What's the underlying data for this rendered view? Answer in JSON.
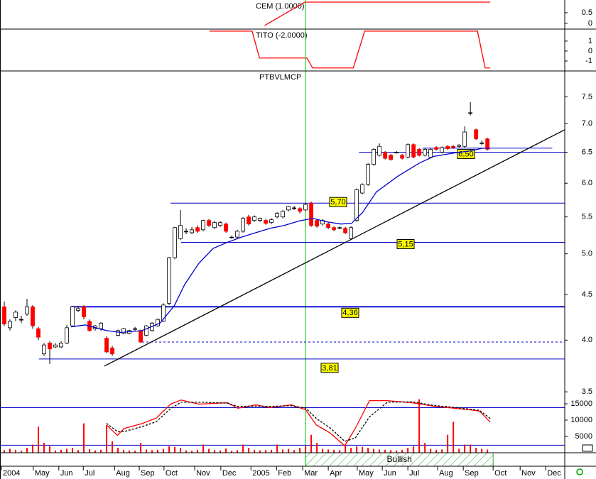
{
  "chart_data": [
    {
      "type": "line",
      "title": "CEM (1.0000)",
      "xlim": [
        -0.75,
        98.6
      ],
      "ylim": [
        -0.27,
        1.1
      ],
      "yticks": [
        0,
        0.5
      ],
      "series": [
        {
          "color": "#ff0000",
          "x": [
            45.8,
            52.9,
            85.5
          ],
          "values": [
            -0.1,
            1,
            1
          ]
        }
      ]
    },
    {
      "type": "line",
      "title": "TITO (-2.0000)",
      "xlim": [
        -0.75,
        98.6
      ],
      "ylim": [
        -2.0,
        2.2
      ],
      "yticks": [
        -1,
        0,
        1
      ],
      "series": [
        {
          "color": "#ff0000",
          "x": [
            36.1,
            43.6,
            44.9,
            53.25,
            54.25,
            61.4,
            63.4,
            83.25,
            84.6,
            85.5
          ],
          "values": [
            2,
            2,
            -0.7,
            -0.7,
            -1.7,
            -1.7,
            2,
            2,
            -1.7,
            -1.7
          ]
        }
      ]
    },
    {
      "type": "candlestick",
      "title": "PTBVLMCP",
      "log_scale": true,
      "xlim": [
        -0.75,
        98.6
      ],
      "ylim": [
        2.99,
        8.02
      ],
      "yticks": [
        3.5,
        {
          "value": 4,
          "label": "4.0"
        },
        4.5,
        {
          "value": 5,
          "label": "5.0"
        },
        5.5,
        {
          "value": 6,
          "label": "6.0"
        },
        6.5,
        {
          "value": 7,
          "label": "7.0"
        },
        7.5
      ],
      "xticks": [
        {
          "value": -0.5,
          "label": "2004"
        },
        {
          "value": 5.1,
          "label": "May"
        },
        {
          "value": 9.6,
          "label": "Jun"
        },
        {
          "value": 13.9,
          "label": "Jul"
        },
        {
          "value": 19.4,
          "label": "Aug"
        },
        {
          "value": 23.75,
          "label": "Sep"
        },
        {
          "value": 28.1,
          "label": "Oct"
        },
        {
          "value": 33.5,
          "label": "Nov"
        },
        {
          "value": 38.1,
          "label": "Dec"
        },
        {
          "value": 43.4,
          "label": "2005"
        },
        {
          "value": 47.9,
          "label": "Feb"
        },
        {
          "value": 52.5,
          "label": "Mar"
        },
        {
          "value": 57,
          "label": "Apr"
        },
        {
          "value": 62.1,
          "label": "May"
        },
        {
          "value": 66.5,
          "label": "Jun"
        },
        {
          "value": 71,
          "label": "Jul"
        },
        {
          "value": 76.25,
          "label": "Aug"
        },
        {
          "value": 80.75,
          "label": "Sep"
        },
        {
          "value": 86,
          "label": "Oct"
        },
        {
          "value": 90.75,
          "label": "Nov"
        },
        {
          "value": 95.25,
          "label": "Dec"
        }
      ],
      "up_color": "#ffffff",
      "down_color": "#ff0000",
      "open": [
        4.36,
        4.13,
        4.24,
        4.22,
        4.28,
        4.36,
        4.12,
        3.86,
        3.97,
        3.93,
        3.93,
        3.97,
        4.15,
        4.32,
        4.36,
        4.2,
        4.12,
        4.12,
        4.02,
        3.92,
        4.05,
        4.07,
        4.07,
        4.12,
        4.1,
        4.05,
        4.1,
        4.15,
        4.2,
        4.4,
        4.95,
        5.2,
        5.3,
        5.28,
        5.35,
        5.32,
        5.45,
        5.35,
        5.38,
        5.4,
        5.22,
        5.22,
        5.3,
        5.5,
        5.45,
        5.45,
        5.45,
        5.42,
        5.5,
        5.5,
        5.6,
        5.63,
        5.62,
        5.6,
        5.7,
        5.45,
        5.4,
        5.4,
        5.35,
        5.35,
        5.34,
        5.2,
        5.45,
        5.85,
        5.98,
        6.3,
        6.45,
        6.5,
        6.45,
        6.5,
        6.45,
        6.42,
        6.63,
        6.55,
        6.45,
        6.42,
        6.58,
        6.5,
        6.6,
        6.6,
        6.6,
        6.6,
        7.2,
        6.89,
        6.66,
        6.73
      ],
      "high": [
        4.42,
        4.22,
        4.32,
        4.26,
        4.45,
        4.38,
        4.14,
        3.97,
        3.99,
        3.97,
        3.99,
        4.16,
        4.37,
        4.37,
        4.38,
        4.22,
        4.16,
        4.19,
        4.04,
        3.94,
        4.11,
        4.13,
        4.11,
        4.14,
        4.11,
        4.16,
        4.19,
        4.23,
        4.4,
        4.96,
        5.36,
        5.6,
        5.34,
        5.36,
        5.38,
        5.46,
        5.47,
        5.44,
        5.44,
        5.42,
        5.24,
        5.32,
        5.5,
        5.53,
        5.52,
        5.49,
        5.47,
        5.48,
        5.57,
        5.6,
        5.66,
        5.66,
        5.64,
        5.7,
        5.72,
        5.47,
        5.47,
        5.42,
        5.37,
        5.37,
        5.36,
        5.37,
        5.92,
        6.0,
        6.32,
        6.57,
        6.65,
        6.52,
        6.47,
        6.52,
        6.47,
        6.65,
        6.65,
        6.57,
        6.57,
        6.57,
        6.6,
        6.6,
        6.62,
        6.62,
        6.64,
        6.95,
        7.4,
        6.91,
        6.7,
        6.75
      ],
      "low": [
        4.15,
        4.1,
        4.2,
        4.18,
        4.26,
        4.12,
        4.0,
        3.84,
        3.76,
        3.92,
        3.92,
        3.96,
        4.14,
        4.3,
        4.22,
        4.09,
        4.1,
        4.1,
        3.87,
        3.84,
        4.04,
        4.06,
        4.06,
        4.1,
        3.97,
        4.04,
        4.09,
        4.14,
        4.19,
        4.38,
        4.93,
        5.18,
        5.26,
        5.26,
        5.28,
        5.3,
        5.36,
        5.33,
        5.36,
        5.28,
        5.2,
        5.2,
        5.28,
        5.38,
        5.43,
        5.43,
        5.39,
        5.4,
        5.48,
        5.48,
        5.58,
        5.6,
        5.55,
        5.58,
        5.36,
        5.35,
        5.38,
        5.33,
        5.3,
        5.33,
        5.26,
        5.18,
        5.43,
        5.83,
        5.96,
        6.28,
        6.43,
        6.38,
        6.36,
        6.48,
        6.38,
        6.4,
        6.4,
        6.43,
        6.43,
        6.4,
        6.53,
        6.48,
        6.54,
        6.56,
        6.58,
        6.58,
        7.15,
        6.71,
        6.62,
        6.53
      ],
      "close": [
        4.17,
        4.2,
        4.3,
        4.22,
        4.36,
        4.15,
        4.03,
        3.95,
        3.91,
        3.95,
        3.97,
        4.13,
        4.36,
        4.34,
        4.25,
        4.1,
        4.15,
        4.18,
        3.88,
        3.86,
        4.1,
        4.12,
        4.1,
        4.12,
        3.98,
        4.15,
        4.18,
        4.22,
        4.38,
        4.95,
        5.35,
        5.38,
        5.3,
        5.32,
        5.3,
        5.45,
        5.38,
        5.42,
        5.42,
        5.3,
        5.22,
        5.3,
        5.48,
        5.4,
        5.5,
        5.48,
        5.41,
        5.46,
        5.55,
        5.58,
        5.65,
        5.63,
        5.58,
        5.68,
        5.38,
        5.37,
        5.45,
        5.35,
        5.32,
        5.35,
        5.28,
        5.35,
        5.9,
        5.98,
        6.3,
        6.55,
        6.6,
        6.4,
        6.38,
        6.5,
        6.4,
        6.63,
        6.42,
        6.45,
        6.55,
        6.55,
        6.55,
        6.58,
        6.56,
        6.58,
        6.62,
        6.85,
        7.2,
        6.73,
        6.66,
        6.55
      ],
      "moving_average": {
        "color": "#0000cc",
        "x": [
          11.75,
          14.25,
          18,
          20.5,
          24.25,
          27.4,
          29.9,
          31.75,
          34.25,
          36.75,
          39.25,
          41.75,
          44.25,
          46.75,
          49.25,
          51.75,
          54.25,
          56.75,
          59.25,
          61.1,
          63,
          65.5,
          69.25,
          73,
          75.5,
          79.25,
          81.75,
          84.25,
          85.5
        ],
        "values": [
          4.14,
          4.16,
          4.1,
          4.08,
          4.1,
          4.18,
          4.37,
          4.62,
          4.88,
          5.07,
          5.15,
          5.22,
          5.28,
          5.34,
          5.38,
          5.44,
          5.48,
          5.43,
          5.4,
          5.41,
          5.56,
          5.87,
          6.11,
          6.32,
          6.43,
          6.49,
          6.52,
          6.57,
          6.57
        ]
      },
      "level_color": "#0000cc",
      "levels": [
        {
          "value": 6.5,
          "label": "6,50",
          "x0": 62.4,
          "x1": 98.6
        },
        {
          "value": 5.7,
          "label": "5,70",
          "x0": 29.25,
          "x1": 98.6
        },
        {
          "value": 5.15,
          "label": "5,15",
          "x0": 31.1,
          "x1": 98.6
        },
        {
          "value": 4.36,
          "label": "4,36",
          "x0": 11.75,
          "x1": 98.6
        },
        {
          "value": 3.81,
          "label": "3,81",
          "x0": 6.1,
          "x1": 98.6
        },
        {
          "value": 6.57,
          "x0": 73.6,
          "x1": 96.4
        },
        {
          "value": 3.98,
          "x0": 24.25,
          "x1": 98.6,
          "dashed": true
        }
      ],
      "trend_line": {
        "color": "#000000",
        "x": [
          17.6,
          98.6
        ],
        "values": [
          3.74,
          6.89
        ]
      },
      "vline": {
        "x": 53,
        "color": "#00cc00"
      },
      "signal": {
        "label": "Bullish",
        "x": [
          53,
          86
        ],
        "color": "#33aa33"
      }
    },
    {
      "type": "bar",
      "xlim": [
        -0.75,
        98.6
      ],
      "ylim": [
        0,
        16960
      ],
      "yticks": [
        5000,
        10000,
        15000
      ],
      "color": "#ff0000",
      "values": [
        800,
        1200,
        900,
        600,
        1500,
        2500,
        8000,
        3000,
        2000,
        700,
        900,
        1200,
        1500,
        800,
        9000,
        1100,
        700,
        900,
        8500,
        3500,
        1500,
        900,
        700,
        600,
        3000,
        1000,
        800,
        900,
        1200,
        2000,
        1800,
        1500,
        700,
        600,
        900,
        2500,
        1200,
        800,
        700,
        1300,
        600,
        800,
        2500,
        1500,
        900,
        700,
        800,
        900,
        2500,
        1000,
        1200,
        800,
        1500,
        2000,
        5500,
        3000,
        1200,
        1000,
        900,
        800,
        2500,
        1500,
        2000,
        1800,
        1500,
        1200,
        1000,
        900,
        800,
        700,
        900,
        1500,
        2000,
        16400,
        3000,
        1200,
        900,
        1000,
        5500,
        9500,
        1200,
        2500,
        2500,
        1500,
        1200,
        1000
      ],
      "level_color": "#0000cc",
      "levels": [
        {
          "value": 13800
        },
        {
          "value": 2300
        }
      ],
      "oscillator": [
        {
          "color": "#ff0000",
          "x": [
            18,
            19.9,
            21.1,
            24.25,
            26.75,
            29.25,
            31.1,
            34.25,
            39.25,
            41.1,
            44.25,
            46.75,
            50.5,
            53,
            54.9,
            57.4,
            59.9,
            61.75,
            64.25,
            67.4,
            71.75,
            75.5,
            79.25,
            81.75,
            83.6,
            85.5
          ],
          "values": [
            8500,
            5300,
            7450,
            8940,
            10640,
            14900,
            16170,
            14900,
            15320,
            13620,
            14680,
            13830,
            14680,
            13190,
            8510,
            5960,
            2130,
            7450,
            15960,
            15960,
            15320,
            14260,
            13620,
            13190,
            12770,
            9360
          ]
        },
        {
          "color": "#000000",
          "dashed": true,
          "x": [
            18,
            19.9,
            21.1,
            24.25,
            26.75,
            29.25,
            31.1,
            34.25,
            39.25,
            41.1,
            44.25,
            46.75,
            50.5,
            53,
            54.9,
            57.4,
            59.9,
            61.75,
            64.25,
            67.4,
            71.75,
            75.5,
            79.25,
            81.75,
            83.6,
            85.5
          ],
          "values": [
            9000,
            6500,
            6500,
            8000,
            9500,
            13500,
            15500,
            15500,
            15200,
            14200,
            14300,
            14200,
            14400,
            13700,
            10500,
            7500,
            3500,
            4500,
            11000,
            15500,
            15600,
            14500,
            13900,
            13400,
            13000,
            10500
          ]
        }
      ]
    }
  ]
}
